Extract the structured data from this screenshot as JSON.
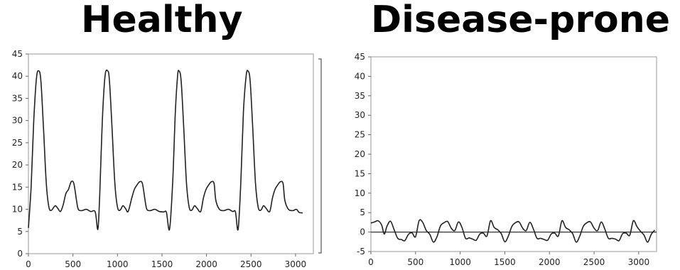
{
  "titles": {
    "left": "Healthy",
    "right": "Disease-prone"
  },
  "chart_data": [
    {
      "type": "line",
      "title": "Healthy",
      "xlim": [
        0,
        3200
      ],
      "ylim": [
        0,
        45
      ],
      "x_ticks": [
        0,
        500,
        1000,
        1500,
        2000,
        2500,
        3000
      ],
      "y_ticks": [
        0,
        5,
        10,
        15,
        20,
        25,
        30,
        35,
        40,
        45
      ],
      "grid": false,
      "line_color": "#222222",
      "series": [
        {
          "x": [
            0,
            30,
            60,
            90,
            115,
            140,
            170,
            200,
            230,
            260,
            300,
            330,
            360,
            390,
            420,
            450,
            480,
            510,
            540,
            560,
            600,
            650,
            700,
            750,
            780,
            800,
            830,
            860,
            890,
            910,
            940,
            970,
            1000,
            1030,
            1060,
            1090,
            1120,
            1160,
            1190,
            1220,
            1250,
            1280,
            1310,
            1330,
            1370,
            1420,
            1470,
            1520,
            1550,
            1585,
            1620,
            1650,
            1675,
            1690,
            1715,
            1745,
            1775,
            1805,
            1835,
            1865,
            1895,
            1935,
            1965,
            1995,
            2025,
            2055,
            2085,
            2105,
            2145,
            2195,
            2245,
            2295,
            2325,
            2355,
            2385,
            2415,
            2445,
            2465,
            2490,
            2520,
            2550,
            2580,
            2610,
            2640,
            2670,
            2710,
            2740,
            2770,
            2800,
            2830,
            2860,
            2880,
            2920,
            2970,
            3010,
            3040,
            3080
          ],
          "y": [
            5.8,
            15,
            30,
            39.5,
            41.2,
            39,
            28,
            16,
            10.5,
            9.8,
            10.8,
            10.2,
            9.5,
            11,
            13.5,
            14.5,
            16.2,
            15.8,
            12,
            10,
            9.7,
            10,
            9.5,
            9.4,
            5.5,
            13,
            30,
            40,
            41.2,
            39,
            28,
            16,
            10.5,
            9.8,
            10.8,
            10.2,
            9.5,
            12.5,
            14.5,
            15.5,
            16.2,
            15.8,
            12,
            10,
            9.7,
            10,
            9.5,
            9.4,
            9.3,
            5.5,
            16,
            32,
            40,
            41.2,
            39,
            28,
            16,
            10.5,
            9.8,
            10.8,
            10.2,
            9.5,
            12.5,
            14.5,
            15.5,
            16.2,
            15.8,
            12,
            10,
            9.7,
            10,
            9.5,
            9.4,
            5.5,
            16,
            32,
            40,
            41.2,
            39,
            28,
            16,
            10.5,
            9.8,
            10.8,
            10.2,
            9.5,
            12.5,
            14.5,
            15.5,
            16.2,
            15.8,
            12,
            10,
            9.7,
            10,
            9.3,
            9.2
          ]
        }
      ]
    },
    {
      "type": "line",
      "title": "Disease-prone",
      "xlim": [
        0,
        3200
      ],
      "ylim": [
        -5,
        45
      ],
      "x_ticks": [
        0,
        500,
        1000,
        1500,
        2000,
        2500,
        3000
      ],
      "y_ticks": [
        -5,
        0,
        5,
        10,
        15,
        20,
        25,
        30,
        35,
        40,
        45
      ],
      "grid": false,
      "zero_line": true,
      "line_color": "#222222",
      "series": [
        {
          "x": [
            0,
            40,
            80,
            120,
            150,
            180,
            220,
            260,
            300,
            340,
            380,
            420,
            460,
            500,
            540,
            580,
            620,
            660,
            700,
            740,
            780,
            820,
            860,
            900,
            940,
            980,
            1020,
            1060,
            1100,
            1140,
            1180,
            1220,
            1260,
            1300,
            1340,
            1380,
            1420,
            1460,
            1500,
            1540,
            1580,
            1620,
            1660,
            1700,
            1740,
            1780,
            1820,
            1860,
            1900,
            1940,
            1980,
            2020,
            2060,
            2100,
            2140,
            2180,
            2220,
            2260,
            2300,
            2340,
            2380,
            2420,
            2460,
            2500,
            2540,
            2580,
            2620,
            2660,
            2700,
            2740,
            2780,
            2820,
            2860,
            2900,
            2940,
            2980,
            3020,
            3060,
            3100,
            3140,
            3180
          ],
          "y": [
            2.3,
            2.6,
            2.9,
            1.8,
            -0.5,
            1.5,
            2.8,
            0.6,
            -1.6,
            -1.9,
            -2.2,
            -0.6,
            -0.2,
            -1.2,
            2.9,
            2.5,
            0.4,
            -0.6,
            -2.6,
            -1.2,
            1.6,
            2.4,
            2.7,
            1.0,
            0.4,
            2.6,
            1.2,
            -1.6,
            -1.5,
            -1.8,
            -2.1,
            -0.5,
            -0.3,
            -1.0,
            2.9,
            1.2,
            0.6,
            -0.4,
            -2.5,
            -1.0,
            1.5,
            2.4,
            2.6,
            1.0,
            0.4,
            2.5,
            0.8,
            -1.6,
            -1.6,
            -1.9,
            -2.1,
            -0.5,
            -0.3,
            -1.0,
            2.9,
            1.2,
            0.6,
            -0.4,
            -2.6,
            -1.0,
            1.5,
            2.4,
            2.6,
            1.0,
            0.4,
            2.6,
            0.8,
            -1.6,
            -1.6,
            -1.8,
            -2.2,
            -0.4,
            -0.3,
            -0.8,
            2.9,
            1.4,
            0.2,
            -0.8,
            -2.6,
            -0.6,
            0.5
          ]
        }
      ]
    }
  ]
}
